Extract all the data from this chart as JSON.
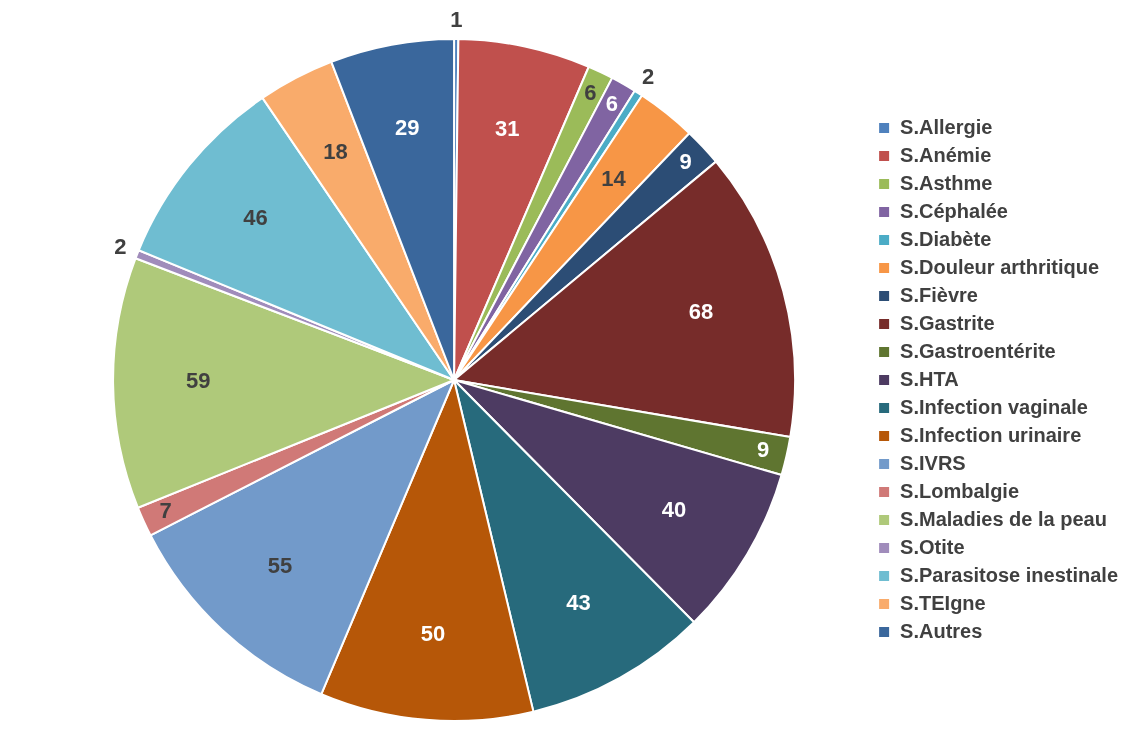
{
  "chart_data": {
    "type": "pie",
    "categories": [
      "S.Allergie",
      "S.Anémie",
      "S.Asthme",
      "S.Céphalée",
      "S.Diabète",
      "S.Douleur arthritique",
      "S.Fièvre",
      "S.Gastrite",
      "S.Gastroentérite",
      "S.HTA",
      "S.Infection vaginale",
      "S.Infection urinaire",
      "S.IVRS",
      "S.Lombalgie",
      "S.Maladies de la peau",
      "S.Otite",
      "S.Parasitose inestinale",
      "S.TEIgne",
      "S.Autres"
    ],
    "values": [
      1,
      31,
      6,
      6,
      2,
      14,
      9,
      68,
      9,
      40,
      43,
      50,
      55,
      7,
      59,
      2,
      46,
      18,
      29
    ],
    "colors": [
      "#4f81bd",
      "#c0504d",
      "#9bbb59",
      "#8064a2",
      "#4bacc6",
      "#f79646",
      "#2c4d75",
      "#772c2a",
      "#5f7530",
      "#4d3b62",
      "#276a7c",
      "#b65708",
      "#729aca",
      "#d07977",
      "#afc97a",
      "#a08cbb",
      "#6fbdd1",
      "#f9ab6b",
      "#3a679c"
    ],
    "data_labels": true,
    "legend": "right"
  }
}
